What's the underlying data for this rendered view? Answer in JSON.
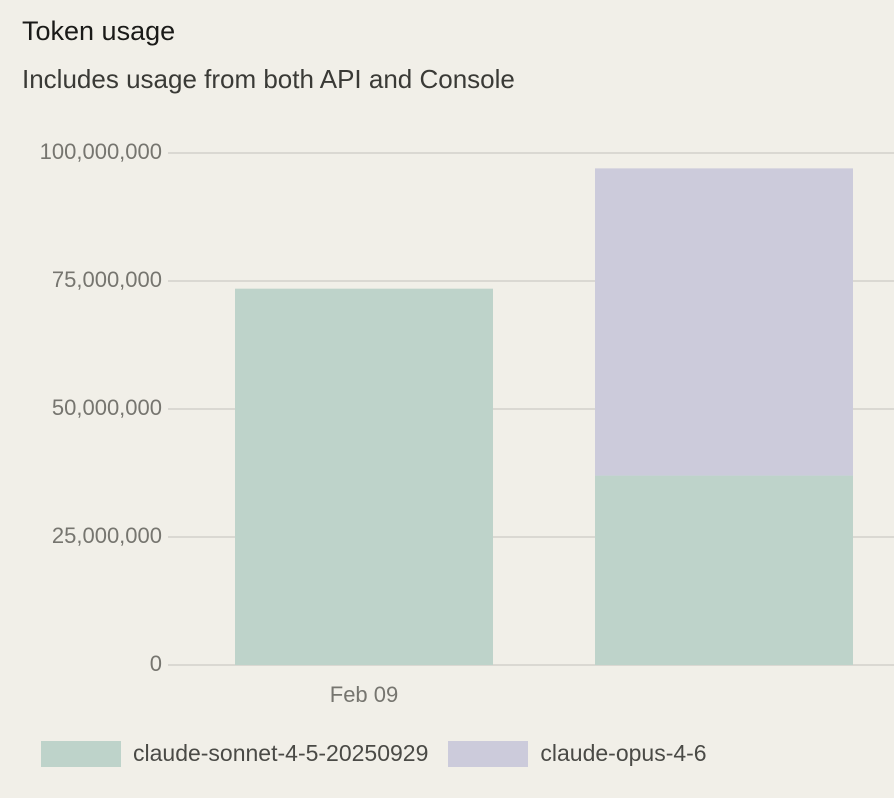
{
  "header": {
    "title": "Token usage",
    "subtitle": "Includes usage from both API and Console"
  },
  "chart_data": {
    "type": "bar",
    "stacked": true,
    "categories": [
      "Feb 09",
      ""
    ],
    "series": [
      {
        "name": "claude-sonnet-4-5-20250929",
        "color": "#bed3ca",
        "values": [
          73500000,
          37000000
        ]
      },
      {
        "name": "claude-opus-4-6",
        "color": "#cccbdb",
        "values": [
          0,
          60000000
        ]
      }
    ],
    "ylim": [
      0,
      100000000
    ],
    "yticks": [
      0,
      25000000,
      50000000,
      75000000,
      100000000
    ],
    "ytick_labels": [
      "0",
      "25,000,000",
      "50,000,000",
      "75,000,000",
      "100,000,000"
    ],
    "grid": true,
    "legend_position": "bottom-left",
    "colors": {
      "grid": "#d3d1cb",
      "axis_text": "#76756f"
    }
  }
}
